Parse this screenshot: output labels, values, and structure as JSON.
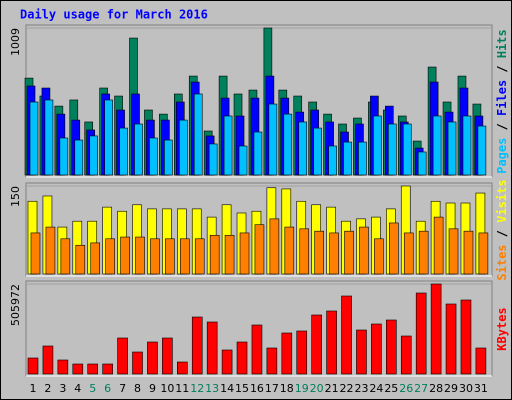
{
  "chart_data": [
    {
      "type": "bar",
      "title": "Daily usage for March 2016",
      "ylim": [
        0,
        1009
      ],
      "yticks": [
        1009
      ],
      "legend_separator": " / ",
      "series": [
        {
          "name": "Hits",
          "color": "#00805c",
          "values": [
            665,
            542,
            473,
            515,
            364,
            597,
            542,
            940,
            446,
            418,
            556,
            679,
            302,
            679,
            556,
            583,
            1009,
            583,
            542,
            501,
            418,
            350,
            391,
            501,
            446,
            405,
            233,
            741,
            501,
            679,
            487
          ]
        },
        {
          "name": "Files",
          "color": "#0000ff",
          "values": [
            611,
            597,
            418,
            377,
            309,
            556,
            446,
            556,
            377,
            377,
            501,
            638,
            268,
            528,
            405,
            528,
            679,
            528,
            432,
            446,
            364,
            295,
            350,
            542,
            473,
            364,
            185,
            638,
            432,
            597,
            405
          ]
        },
        {
          "name": "Pages",
          "color": "#00c0ff",
          "values": [
            501,
            515,
            254,
            240,
            268,
            515,
            322,
            350,
            254,
            240,
            377,
            556,
            213,
            405,
            199,
            295,
            487,
            418,
            364,
            322,
            199,
            226,
            226,
            405,
            350,
            350,
            158,
            405,
            364,
            405,
            336
          ]
        }
      ]
    },
    {
      "type": "bar",
      "ylim": [
        0,
        150
      ],
      "yticks": [
        150
      ],
      "legend_separator": " / ",
      "series": [
        {
          "name": "Visits",
          "color": "#ffff00",
          "values": [
            124,
            133,
            80,
            90,
            90,
            114,
            107,
            118,
            111,
            111,
            111,
            111,
            97,
            118,
            104,
            107,
            147,
            145,
            124,
            118,
            114,
            90,
            94,
            97,
            111,
            150,
            90,
            124,
            121,
            121,
            138
          ]
        },
        {
          "name": "Sites",
          "color": "#ff8000",
          "values": [
            70,
            80,
            60,
            49,
            53,
            60,
            63,
            63,
            60,
            60,
            60,
            60,
            66,
            66,
            70,
            84,
            94,
            80,
            77,
            73,
            70,
            73,
            80,
            60,
            87,
            70,
            73,
            97,
            77,
            73,
            70
          ]
        }
      ]
    },
    {
      "type": "bar",
      "ylim": [
        0,
        505972
      ],
      "yticks": [
        505972
      ],
      "categories": [
        "1",
        "2",
        "3",
        "4",
        "5",
        "6",
        "7",
        "8",
        "9",
        "10",
        "11",
        "12",
        "13",
        "14",
        "15",
        "16",
        "17",
        "18",
        "19",
        "20",
        "21",
        "22",
        "23",
        "24",
        "25",
        "26",
        "27",
        "28",
        "29",
        "30",
        "31"
      ],
      "label_colors": [
        "#000",
        "#000",
        "#000",
        "#000",
        "#00805c",
        "#00805c",
        "#000",
        "#000",
        "#000",
        "#000",
        "#000",
        "#00805c",
        "#00805c",
        "#000",
        "#000",
        "#000",
        "#000",
        "#000",
        "#00805c",
        "#00805c",
        "#000",
        "#000",
        "#000",
        "#000",
        "#000",
        "#00805c",
        "#00805c",
        "#000",
        "#000",
        "#000",
        "#000"
      ],
      "series": [
        {
          "name": "KBytes",
          "color": "#ff0000",
          "values": [
            89955,
            157416,
            78708,
            56220,
            56220,
            56220,
            202392,
            123684,
            179904,
            202392,
            67464,
            320454,
            292344,
            134928,
            179904,
            275478,
            146172,
            230502,
            241746,
            331698,
            354186,
            438516,
            247368,
            281100,
            303588,
            213636,
            455382,
            505972,
            393540,
            416028,
            146172
          ]
        }
      ]
    }
  ]
}
